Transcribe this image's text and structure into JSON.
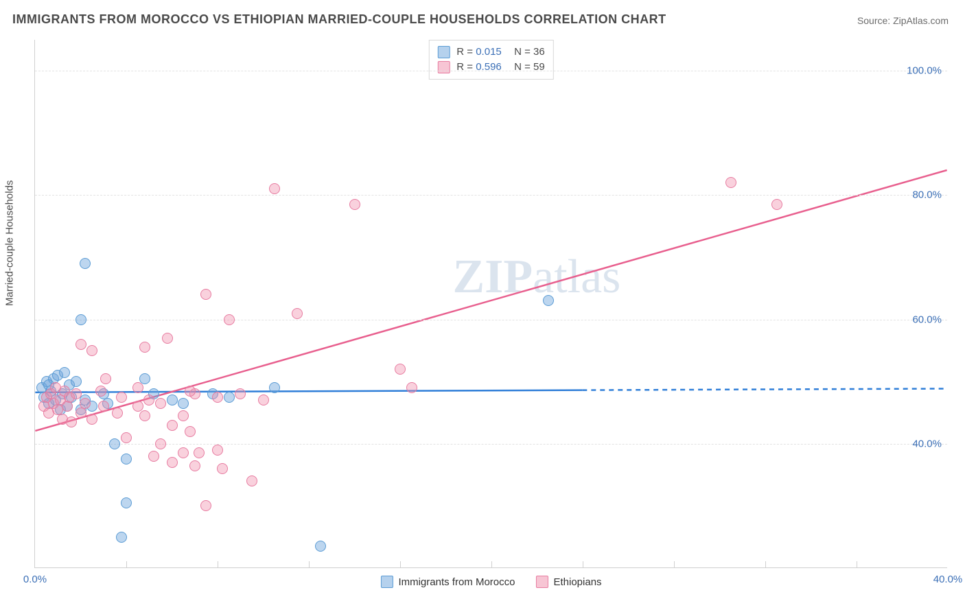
{
  "title": "IMMIGRANTS FROM MOROCCO VS ETHIOPIAN MARRIED-COUPLE HOUSEHOLDS CORRELATION CHART",
  "source_label": "Source: ZipAtlas.com",
  "watermark": "ZIPatlas",
  "yaxis_title": "Married-couple Households",
  "chart": {
    "type": "scatter",
    "xlim": [
      0,
      40
    ],
    "ylim": [
      20,
      105
    ],
    "x_ticks": [
      0,
      40
    ],
    "x_tick_labels": [
      "0.0%",
      "40.0%"
    ],
    "x_minor_ticks": [
      4,
      8,
      12,
      16,
      20,
      24,
      28,
      32,
      36
    ],
    "y_ticks": [
      40,
      60,
      80,
      100
    ],
    "y_tick_labels": [
      "40.0%",
      "60.0%",
      "80.0%",
      "100.0%"
    ],
    "grid_color": "#e2e2e2",
    "axis_color": "#cfcfcf",
    "background_color": "#ffffff",
    "label_color": "#3b6fb6",
    "label_fontsize": 15,
    "marker_size": 16,
    "series": [
      {
        "name": "Immigrants from Morocco",
        "color_fill": "rgba(108,163,219,0.45)",
        "color_stroke": "#5a9bd4",
        "r": "0.015",
        "n": "36",
        "trend": {
          "y_start": 48.2,
          "y_end": 48.8,
          "solid_to_x": 24,
          "stroke": "#2f7ed8",
          "width": 2.5
        },
        "points": [
          [
            0.3,
            49
          ],
          [
            0.4,
            47.5
          ],
          [
            0.5,
            50
          ],
          [
            0.6,
            46.5
          ],
          [
            0.7,
            48.5
          ],
          [
            0.8,
            50.5
          ],
          [
            0.9,
            47
          ],
          [
            1.0,
            51
          ],
          [
            1.1,
            45.5
          ],
          [
            1.2,
            48
          ],
          [
            1.4,
            46
          ],
          [
            1.5,
            49.5
          ],
          [
            1.6,
            47.5
          ],
          [
            1.8,
            50
          ],
          [
            2.0,
            45.5
          ],
          [
            2.2,
            47
          ],
          [
            2.5,
            46
          ],
          [
            2.0,
            60
          ],
          [
            2.2,
            69
          ],
          [
            3.0,
            48
          ],
          [
            3.2,
            46.5
          ],
          [
            3.5,
            40
          ],
          [
            4.0,
            37.5
          ],
          [
            4.0,
            30.5
          ],
          [
            4.8,
            50.5
          ],
          [
            5.2,
            48
          ],
          [
            3.8,
            25
          ],
          [
            6.0,
            47
          ],
          [
            6.5,
            46.5
          ],
          [
            7.8,
            48
          ],
          [
            8.5,
            47.5
          ],
          [
            10.5,
            49
          ],
          [
            12.5,
            23.5
          ],
          [
            22.5,
            63
          ],
          [
            1.3,
            51.5
          ],
          [
            0.6,
            49.5
          ]
        ]
      },
      {
        "name": "Ethiopians",
        "color_fill": "rgba(240,140,170,0.40)",
        "color_stroke": "#e77ba0",
        "r": "0.596",
        "n": "59",
        "trend": {
          "y_start": 42,
          "y_end": 84,
          "solid_to_x": 40,
          "stroke": "#e85f8e",
          "width": 2.5
        },
        "points": [
          [
            0.4,
            46
          ],
          [
            0.5,
            47.5
          ],
          [
            0.6,
            45
          ],
          [
            0.7,
            48
          ],
          [
            0.8,
            46.5
          ],
          [
            0.9,
            49
          ],
          [
            1.0,
            45.5
          ],
          [
            1.1,
            47
          ],
          [
            1.2,
            44
          ],
          [
            1.3,
            48.5
          ],
          [
            1.4,
            46
          ],
          [
            1.5,
            47.5
          ],
          [
            1.6,
            43.5
          ],
          [
            1.8,
            48
          ],
          [
            2.0,
            45
          ],
          [
            2.2,
            46.5
          ],
          [
            2.0,
            56
          ],
          [
            2.5,
            55
          ],
          [
            2.5,
            44
          ],
          [
            2.9,
            48.5
          ],
          [
            3.0,
            46
          ],
          [
            3.1,
            50.5
          ],
          [
            3.6,
            45
          ],
          [
            3.8,
            47.5
          ],
          [
            4.0,
            41
          ],
          [
            4.5,
            46
          ],
          [
            4.5,
            49
          ],
          [
            4.8,
            44.5
          ],
          [
            4.8,
            55.5
          ],
          [
            5.0,
            47
          ],
          [
            5.5,
            46.5
          ],
          [
            5.2,
            38
          ],
          [
            5.5,
            40
          ],
          [
            6.0,
            37
          ],
          [
            6.0,
            43
          ],
          [
            6.5,
            38.5
          ],
          [
            6.5,
            44.5
          ],
          [
            6.8,
            42
          ],
          [
            7.0,
            48
          ],
          [
            7.0,
            36.5
          ],
          [
            7.5,
            30
          ],
          [
            7.2,
            38.5
          ],
          [
            8.0,
            39
          ],
          [
            8.0,
            47.5
          ],
          [
            8.2,
            36
          ],
          [
            5.8,
            57
          ],
          [
            7.5,
            64
          ],
          [
            8.5,
            60
          ],
          [
            9.0,
            48
          ],
          [
            9.5,
            34
          ],
          [
            10.0,
            47
          ],
          [
            10.5,
            81
          ],
          [
            11.5,
            61
          ],
          [
            14.0,
            78.5
          ],
          [
            16.0,
            52
          ],
          [
            16.5,
            49
          ],
          [
            30.5,
            82
          ],
          [
            32.5,
            78.5
          ],
          [
            6.8,
            48.5
          ]
        ]
      }
    ]
  },
  "legend_bottom": [
    {
      "swatch": "blue",
      "label": "Immigrants from Morocco"
    },
    {
      "swatch": "pink",
      "label": "Ethiopians"
    }
  ]
}
